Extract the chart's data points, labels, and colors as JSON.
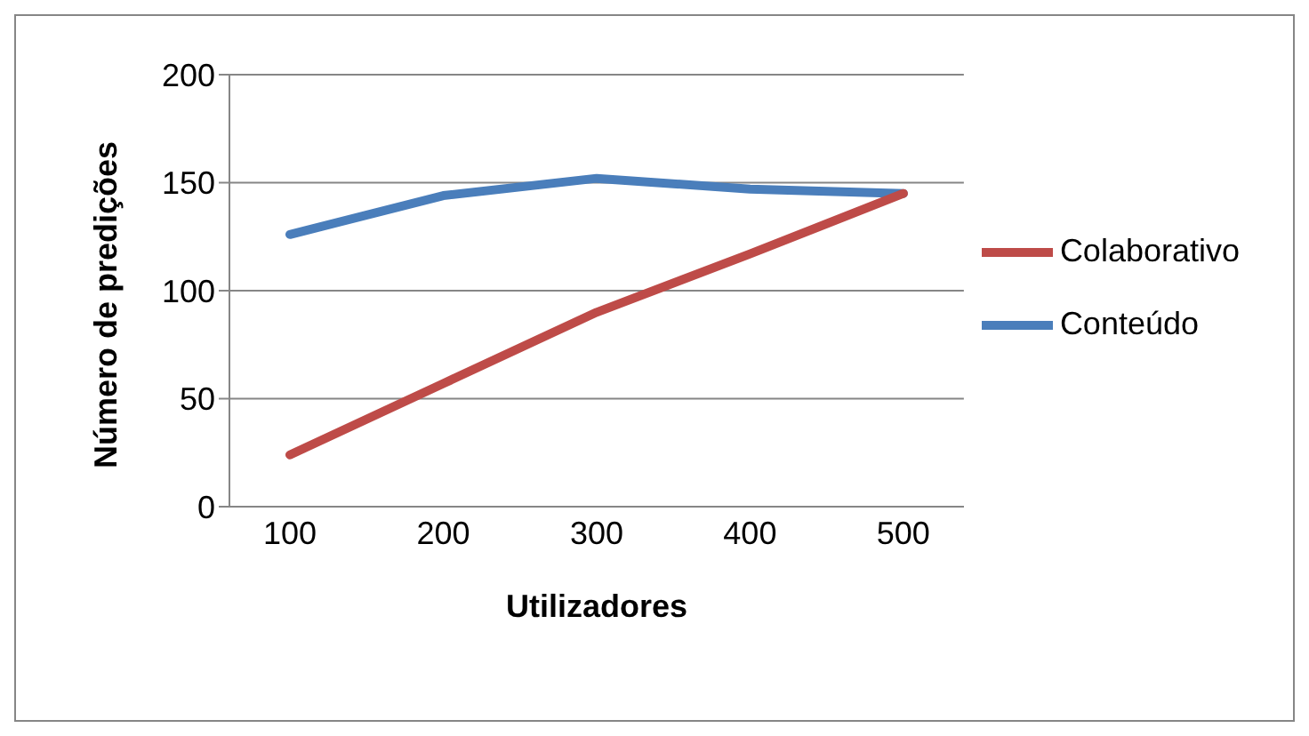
{
  "chart_data": {
    "type": "line",
    "xlabel": "Utilizadores",
    "ylabel": "Número de predições",
    "categories": [
      "100",
      "200",
      "300",
      "400",
      "500"
    ],
    "series": [
      {
        "name": "Conteúdo",
        "color": "#4a7ebb",
        "values": [
          126,
          144,
          152,
          147,
          145
        ]
      },
      {
        "name": "Colaborativo",
        "color": "#be4b48",
        "values": [
          24,
          57,
          90,
          117,
          145
        ]
      }
    ],
    "ylim": [
      0,
      200
    ],
    "yticks": [
      0,
      50,
      100,
      150,
      200
    ],
    "grid": "y",
    "legend": "right",
    "marker": "none",
    "line_style": "solid"
  }
}
